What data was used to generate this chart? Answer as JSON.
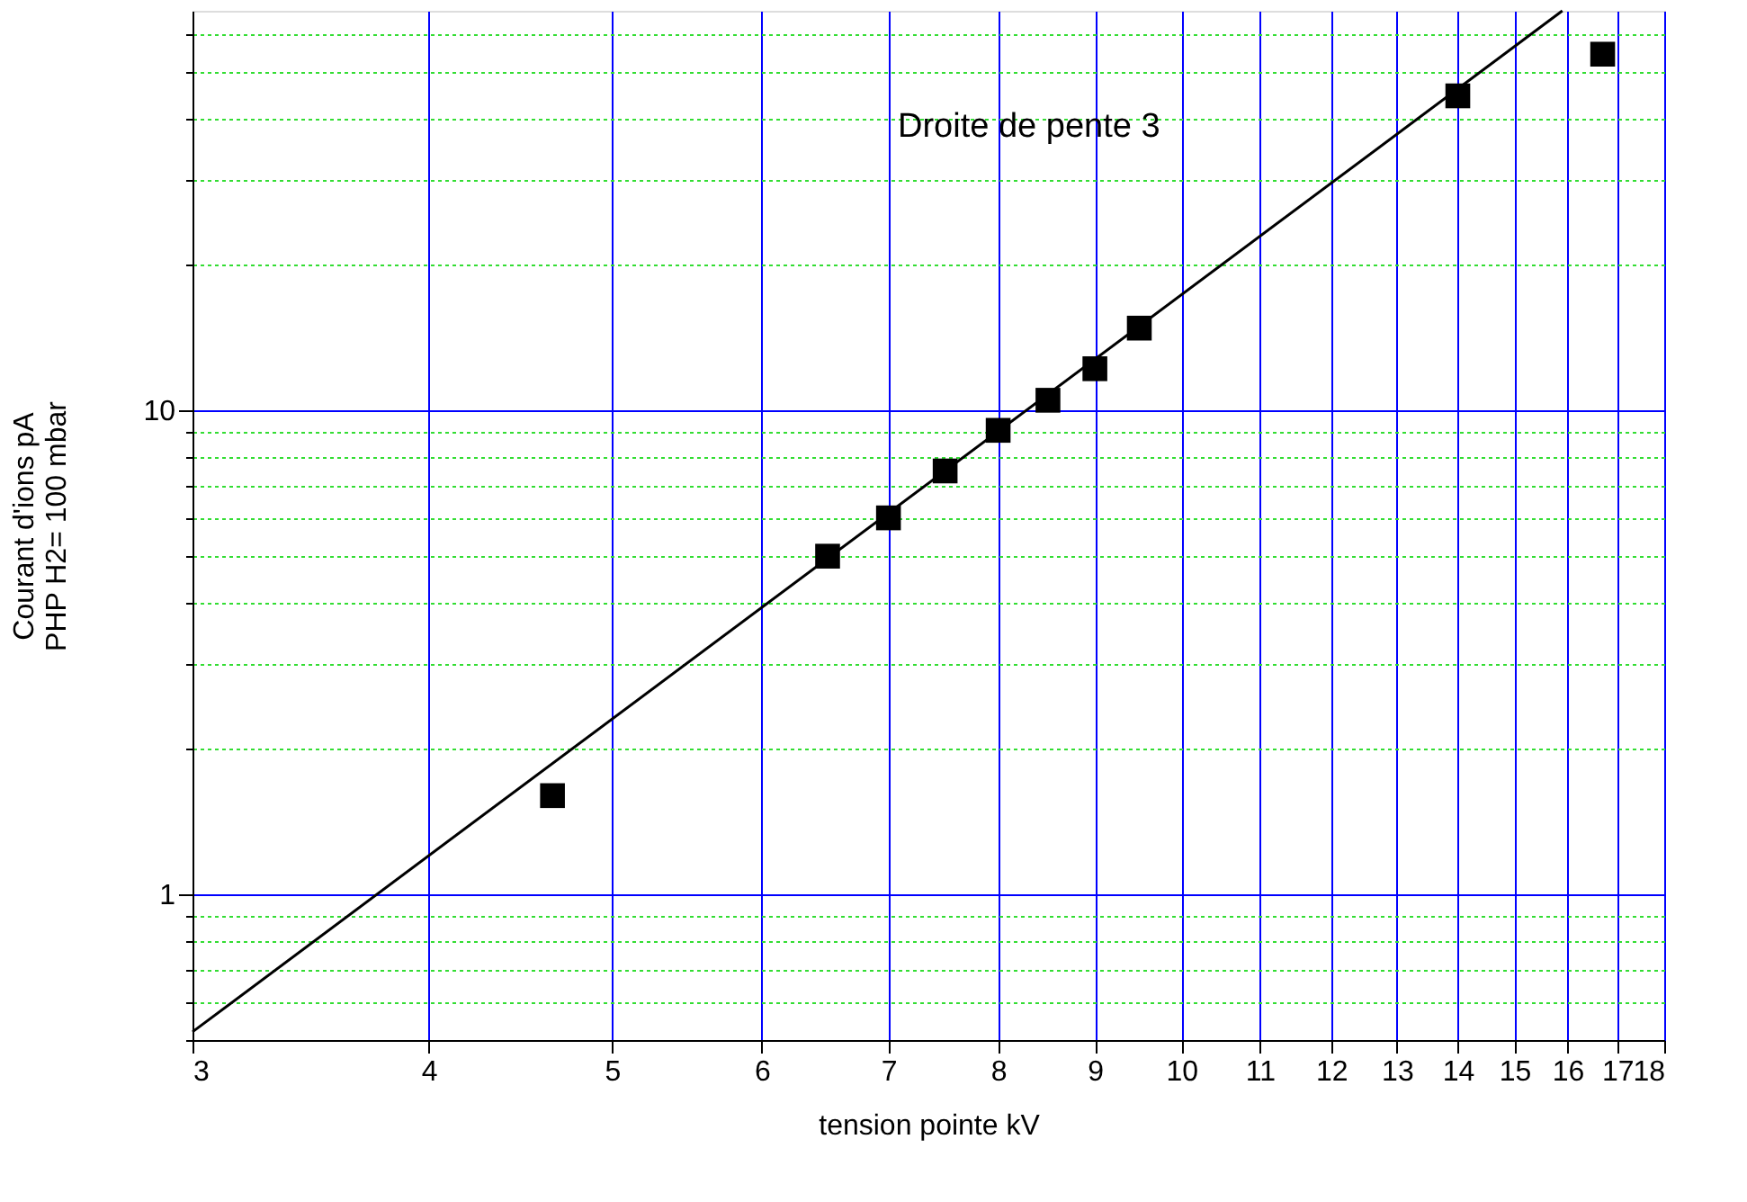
{
  "chart_data": {
    "type": "scatter",
    "xlabel": "tension pointe kV",
    "ylabel": "Courant d'ions pA\nPHP H2= 100 mbar",
    "log": "xy",
    "grid": true,
    "marker": "square",
    "xlim": [
      3,
      18
    ],
    "ylim": [
      0.5,
      67
    ],
    "xticks": [
      3,
      4,
      5,
      6,
      7,
      8,
      9,
      10,
      11,
      12,
      13,
      14,
      15,
      16,
      17,
      18
    ],
    "yticks": [
      {
        "value": 0.5,
        "label": null
      },
      {
        "value": 0.6,
        "label": null
      },
      {
        "value": 0.7,
        "label": null
      },
      {
        "value": 0.8,
        "label": null
      },
      {
        "value": 0.9,
        "label": null
      },
      1,
      {
        "value": 2,
        "label": null
      },
      {
        "value": 3,
        "label": null
      },
      {
        "value": 4,
        "label": null
      },
      {
        "value": 5,
        "label": null
      },
      {
        "value": 6,
        "label": null
      },
      {
        "value": 7,
        "label": null
      },
      {
        "value": 8,
        "label": null
      },
      {
        "value": 9,
        "label": null
      },
      10,
      {
        "value": 20,
        "label": null
      },
      {
        "value": 30,
        "label": null
      },
      {
        "value": 40,
        "label": null
      },
      {
        "value": 50,
        "label": null
      },
      {
        "value": 60,
        "label": null
      }
    ],
    "annotations": [
      "Droite de pente 3"
    ],
    "series": [
      {
        "color": "#000000",
        "x": [
          4.65,
          6.5,
          7,
          7.5,
          8,
          8.5,
          9,
          9.5,
          14,
          16.7
        ],
        "values": [
          1.6,
          5.0,
          6.0,
          7.5,
          9.1,
          10.5,
          12.2,
          14.8,
          44.7,
          54.5
        ]
      },
      {
        "type": "line",
        "marker": "none",
        "color": "#000000",
        "x": [
          3.0,
          15.9
        ],
        "values": [
          0.52,
          67
        ]
      }
    ]
  }
}
